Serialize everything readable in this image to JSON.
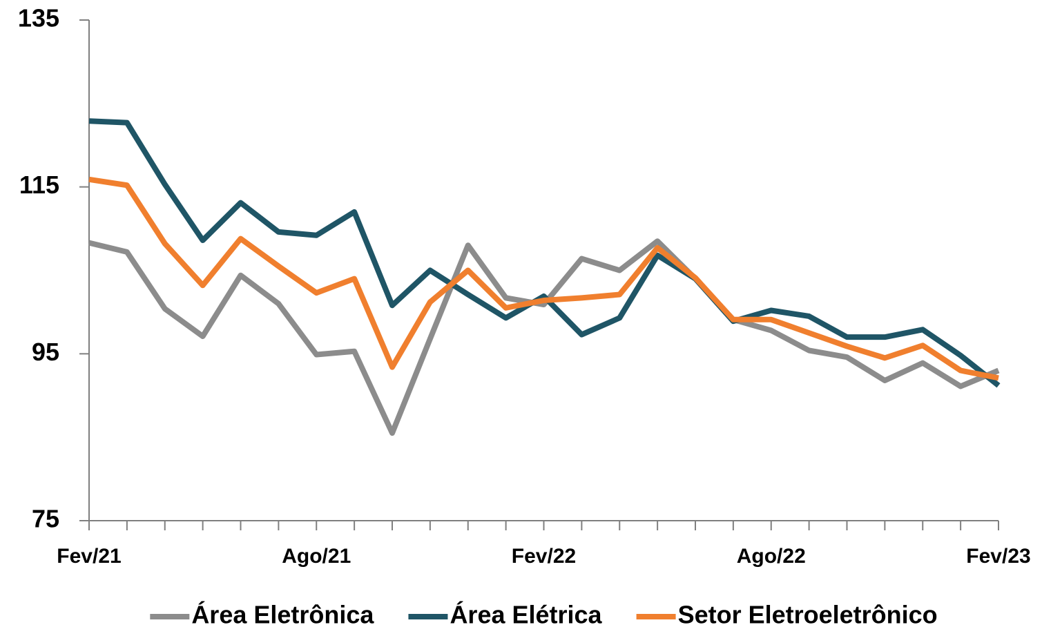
{
  "chart_data": {
    "type": "line",
    "categories": [
      "Fev/21",
      null,
      null,
      null,
      null,
      null,
      "Ago/21",
      null,
      null,
      null,
      null,
      null,
      "Fev/22",
      null,
      null,
      null,
      null,
      null,
      "Ago/22",
      null,
      null,
      null,
      null,
      null,
      "Fev/23"
    ],
    "series": [
      {
        "name": "Área Eletrônica",
        "color": "#8c8c8c",
        "values": [
          108.3,
          107.2,
          100.4,
          97.1,
          104.4,
          101.0,
          94.9,
          95.3,
          85.5,
          96.8,
          108.0,
          101.7,
          100.9,
          106.4,
          105.0,
          108.5,
          104.0,
          99.1,
          97.8,
          95.4,
          94.6,
          91.8,
          93.9,
          91.1,
          93.0
        ]
      },
      {
        "name": "Área Elétrica",
        "color": "#1f5566",
        "values": [
          122.9,
          122.7,
          115.3,
          108.6,
          113.1,
          109.6,
          109.2,
          112.0,
          100.8,
          105.0,
          102.1,
          99.3,
          101.9,
          97.3,
          99.3,
          106.8,
          104.0,
          98.9,
          100.2,
          99.5,
          97.0,
          97.0,
          97.9,
          94.8,
          91.2
        ]
      },
      {
        "name": "Setor Eletroeletrônico",
        "color": "#f07f2e",
        "values": [
          115.9,
          115.2,
          108.2,
          103.2,
          108.8,
          105.5,
          102.3,
          104.0,
          93.4,
          101.2,
          105.0,
          100.5,
          101.4,
          101.7,
          102.1,
          107.7,
          104.1,
          99.1,
          99.1,
          97.5,
          95.9,
          94.5,
          96.0,
          93.0,
          92.1
        ]
      }
    ],
    "ylim": [
      75,
      135
    ],
    "yticks": [
      75,
      95,
      115,
      135
    ],
    "grid": false,
    "legend": "bottom"
  }
}
